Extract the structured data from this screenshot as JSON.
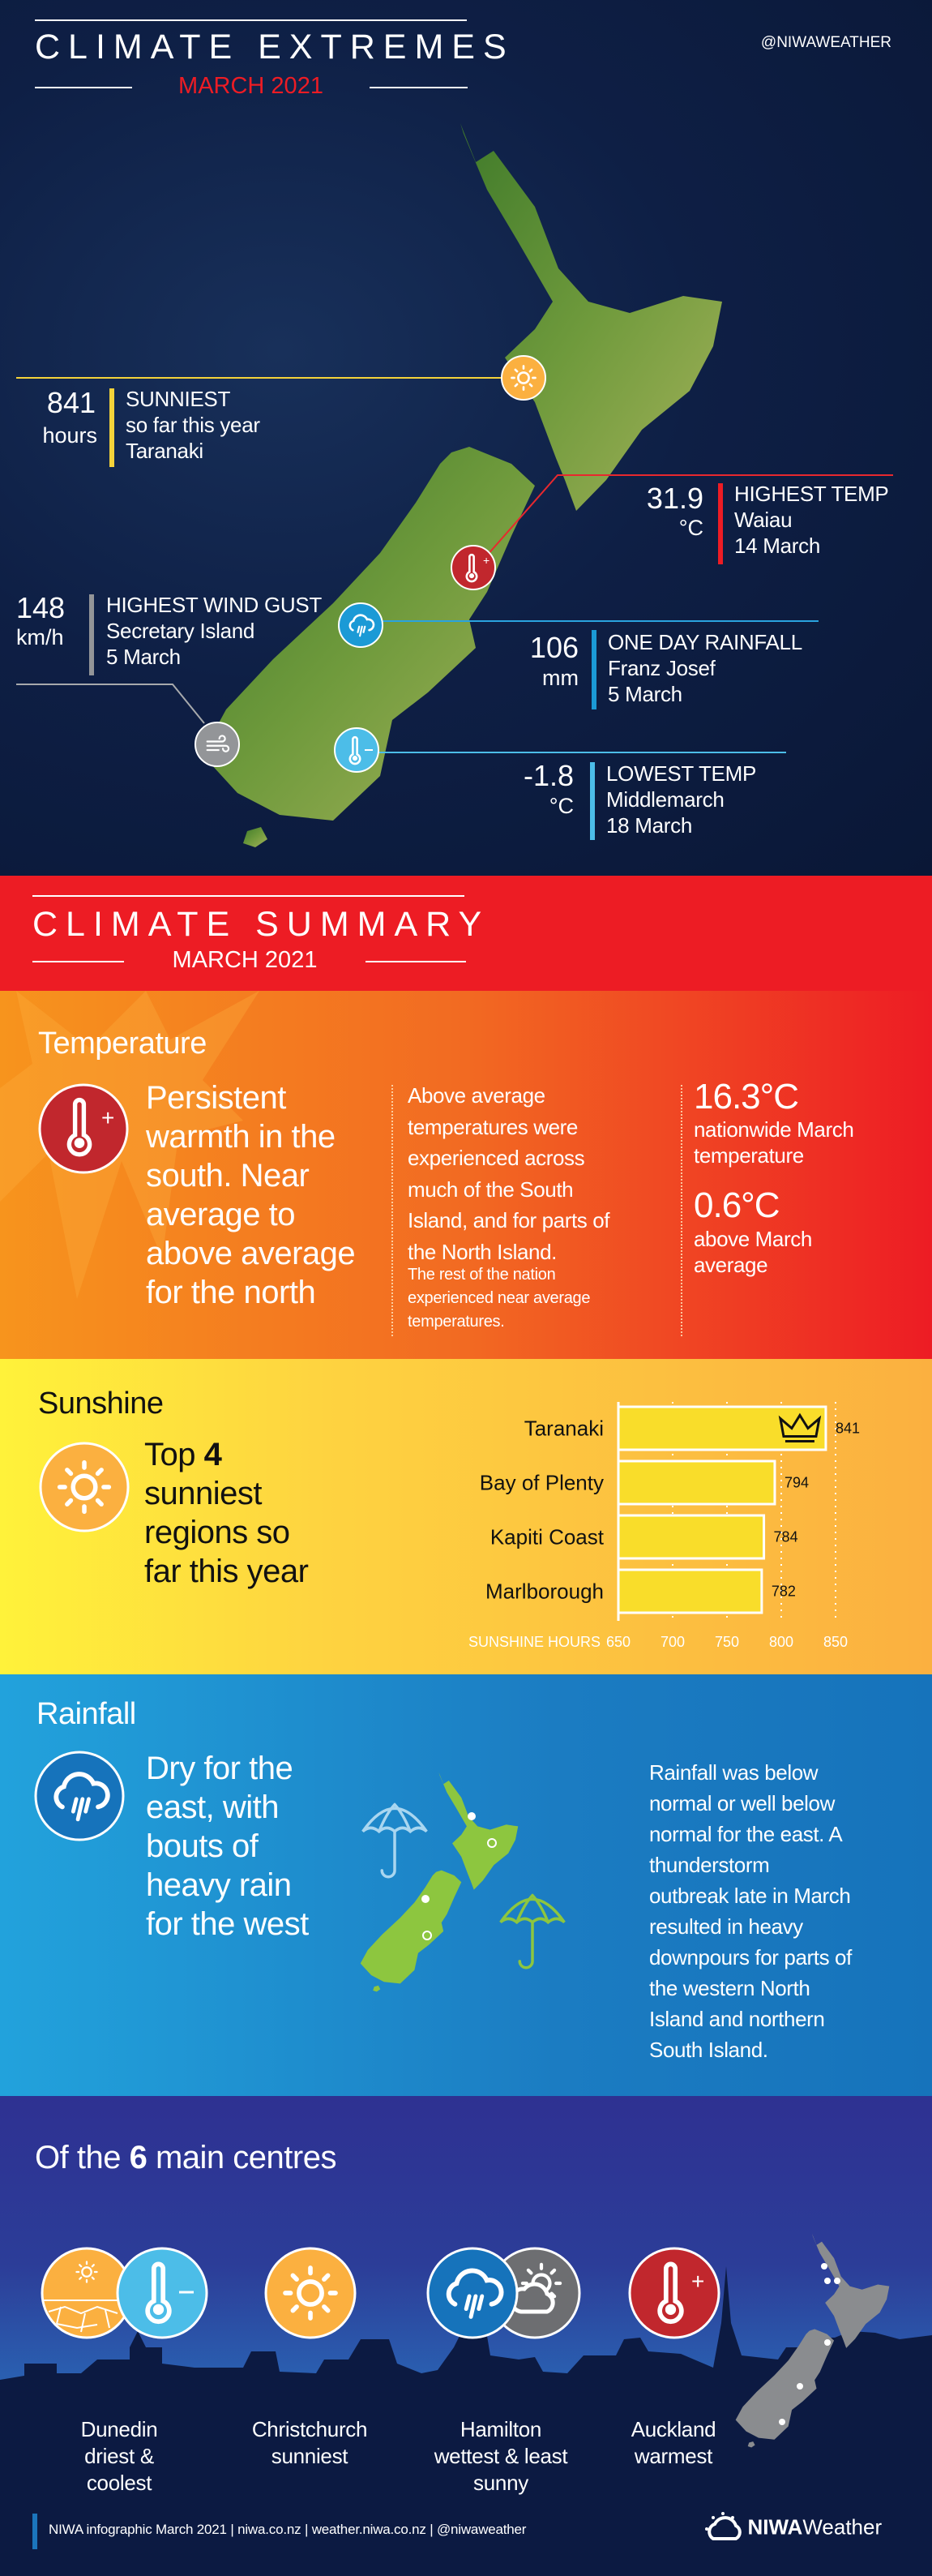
{
  "extremes": {
    "title": "CLIMATE EXTREMES",
    "subtitle": "MARCH 2021",
    "handle": "@NIWAWEATHER",
    "callouts": {
      "sunniest": {
        "value": "841",
        "unit": "hours",
        "label": "SUNNIEST",
        "line2": "so far this year",
        "line3": "Taranaki",
        "icon": "sun-icon",
        "color": "#fbb040"
      },
      "highest_temp": {
        "value": "31.9",
        "unit": "°C",
        "label": "HIGHEST TEMP",
        "line2": "Waiau",
        "line3": "14 March",
        "icon": "thermometer-plus-icon",
        "color": "#ed1c24"
      },
      "wind": {
        "value": "148",
        "unit": "km/h",
        "label": "HIGHEST WIND GUST",
        "line2": "Secretary Island",
        "line3": "5 March",
        "icon": "wind-icon",
        "color": "#939598"
      },
      "rainfall": {
        "value": "106",
        "unit": "mm",
        "label": "ONE DAY RAINFALL",
        "line2": "Franz Josef",
        "line3": "5 March",
        "icon": "rain-cloud-icon",
        "color": "#1b9ad6"
      },
      "lowest_temp": {
        "value": "-1.8",
        "unit": "°C",
        "label": "LOWEST TEMP",
        "line2": "Middlemarch",
        "line3": "18 March",
        "icon": "thermometer-minus-icon",
        "color": "#4cbde8"
      }
    }
  },
  "summary": {
    "title": "CLIMATE SUMMARY",
    "subtitle": "MARCH 2021"
  },
  "temperature": {
    "heading": "Temperature",
    "headline_lines": [
      "Persistent",
      "warmth in the",
      "south. Near",
      "average to",
      "above average",
      "for the north"
    ],
    "body_lines": [
      "Above average",
      "temperatures were",
      "experienced across",
      "much of the South",
      "Island, and for parts of",
      "the North Island."
    ],
    "note_lines": [
      "The rest of the nation",
      "experienced near average",
      "temperatures."
    ],
    "stat1_value": "16.3°C",
    "stat1_lines": [
      "nationwide March",
      "temperature"
    ],
    "stat2_value": "0.6°C",
    "stat2_lines": [
      "above March",
      "average"
    ]
  },
  "sunshine": {
    "heading": "Sunshine",
    "headline_pre": "Top",
    "headline_num": "4",
    "headline_lines": [
      "sunniest",
      "regions so",
      "far this year"
    ]
  },
  "chart_data": {
    "type": "bar",
    "orientation": "horizontal",
    "categories": [
      "Taranaki",
      "Bay of Plenty",
      "Kapiti Coast",
      "Marlborough"
    ],
    "values": [
      841,
      794,
      784,
      782
    ],
    "value_labels": [
      "841",
      "794",
      "784",
      "782"
    ],
    "xlabel": "SUNSHINE HOURS",
    "xlim": [
      650,
      850
    ],
    "xticks": [
      "650",
      "700",
      "750",
      "800",
      "850"
    ],
    "xtick_values": [
      650,
      700,
      750,
      800,
      850
    ],
    "bar_color": "#f9dd2a",
    "grid": true,
    "highlight": "Taranaki"
  },
  "rainfall": {
    "heading": "Rainfall",
    "headline_lines": [
      "Dry for the",
      "east, with",
      "bouts of",
      "heavy rain",
      "for the west"
    ],
    "body_lines": [
      "Rainfall was below",
      "normal or well below",
      "normal for the east. A",
      "thunderstorm",
      "outbreak late in March",
      "resulted in heavy",
      "downpours for parts of",
      "the western North",
      "Island and northern",
      "South Island."
    ]
  },
  "centres": {
    "heading_pre": "Of the",
    "heading_num": "6",
    "heading_post": "main centres",
    "items": [
      {
        "city": "Dunedin",
        "lines": [
          "driest &",
          "coolest"
        ]
      },
      {
        "city": "Christchurch",
        "lines": [
          "sunniest"
        ]
      },
      {
        "city": "Hamilton",
        "lines": [
          "wettest & least",
          "sunny"
        ]
      },
      {
        "city": "Auckland",
        "lines": [
          "warmest"
        ]
      }
    ]
  },
  "footer": {
    "credit": "NIWA infographic March 2021",
    "link1": "niwa.co.nz",
    "link2": "weather.niwa.co.nz",
    "handle": "@niwaweather",
    "separator": "|",
    "logo_bold": "NIWA",
    "logo_light": "Weather"
  }
}
